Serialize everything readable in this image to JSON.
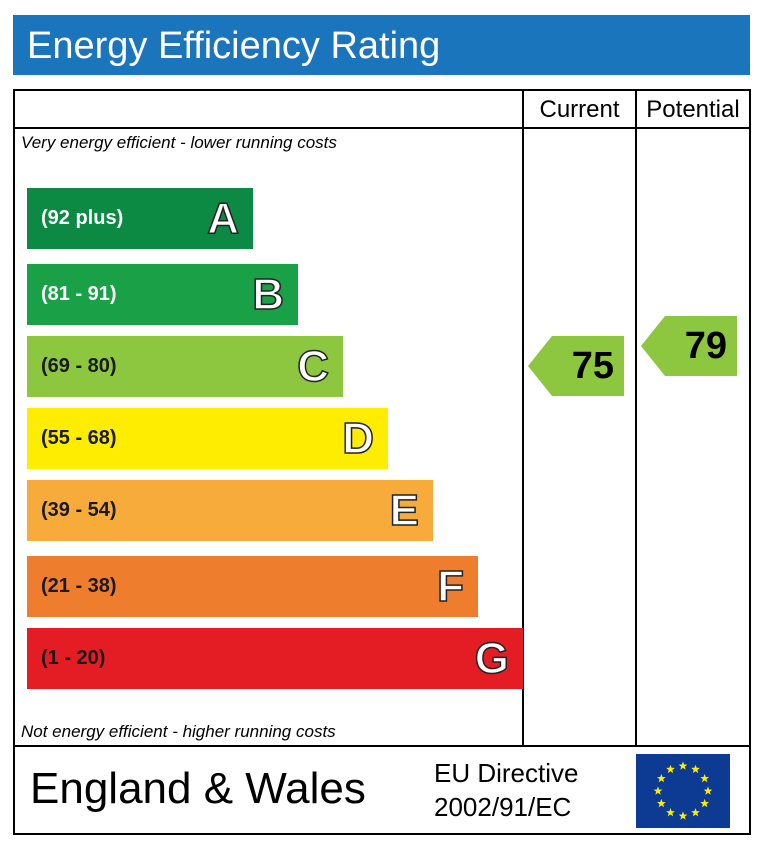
{
  "header": {
    "title": "Energy Efficiency Rating"
  },
  "columns": {
    "current": "Current",
    "potential": "Potential"
  },
  "notes": {
    "top": "Very energy efficient - lower running costs",
    "bottom": "Not energy efficient - higher running costs"
  },
  "chart_data": {
    "type": "bar",
    "categories": [
      "A",
      "B",
      "C",
      "D",
      "E",
      "F",
      "G"
    ],
    "bands": [
      {
        "letter": "A",
        "range": "(92 plus)",
        "min": 92,
        "max": 100,
        "color": "#0c8a44",
        "range_color": "#ffffff"
      },
      {
        "letter": "B",
        "range": "(81 - 91)",
        "min": 81,
        "max": 91,
        "color": "#1aa147",
        "range_color": "#ffffff"
      },
      {
        "letter": "C",
        "range": "(69 - 80)",
        "min": 69,
        "max": 80,
        "color": "#8dc63f",
        "range_color": "#1a1a1a"
      },
      {
        "letter": "D",
        "range": "(55 - 68)",
        "min": 55,
        "max": 68,
        "color": "#ffed00",
        "range_color": "#1a1a1a"
      },
      {
        "letter": "E",
        "range": "(39 - 54)",
        "min": 39,
        "max": 54,
        "color": "#f7ab3b",
        "range_color": "#1a1a1a"
      },
      {
        "letter": "F",
        "range": "(21 - 38)",
        "min": 21,
        "max": 38,
        "color": "#ef7d2e",
        "range_color": "#1a1a1a"
      },
      {
        "letter": "G",
        "range": "(1 - 20)",
        "min": 1,
        "max": 20,
        "color": "#e31d23",
        "range_color": "#1a1a1a"
      }
    ],
    "current": {
      "value": 75,
      "band": "C",
      "color": "#8dc63f"
    },
    "potential": {
      "value": 79,
      "band": "C",
      "color": "#8dc63f"
    }
  },
  "footer": {
    "country": "England & Wales",
    "directive_line1": "EU Directive",
    "directive_line2": "2002/91/EC",
    "flag_icon": "eu-flag-icon",
    "flag_color": "#0d3b93",
    "star_color": "#ffed00"
  }
}
